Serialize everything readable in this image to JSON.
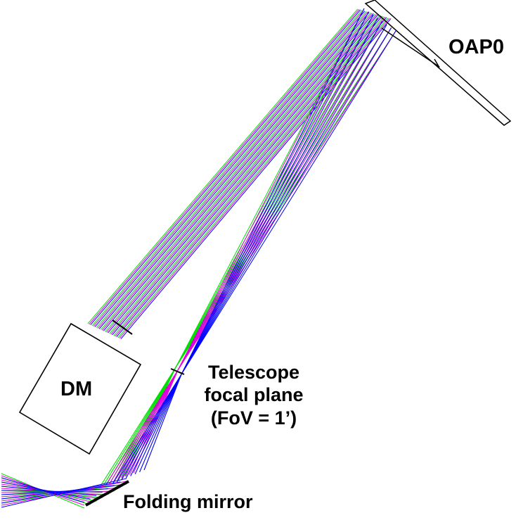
{
  "labels": {
    "oap0": "OAP0",
    "dm": "DM",
    "focal_plane_line1": "Telescope",
    "focal_plane_line2": "focal plane",
    "focal_plane_line3": "(FoV = 1’)",
    "folding_mirror": "Folding mirror"
  },
  "colors": {
    "field_green": "#00e000",
    "field_magenta": "#e000e0",
    "field_blue": "#0000ff",
    "outline": "#000000",
    "background": "#ffffff"
  },
  "ray_fields": [
    "field_green",
    "field_magenta",
    "field_blue"
  ]
}
